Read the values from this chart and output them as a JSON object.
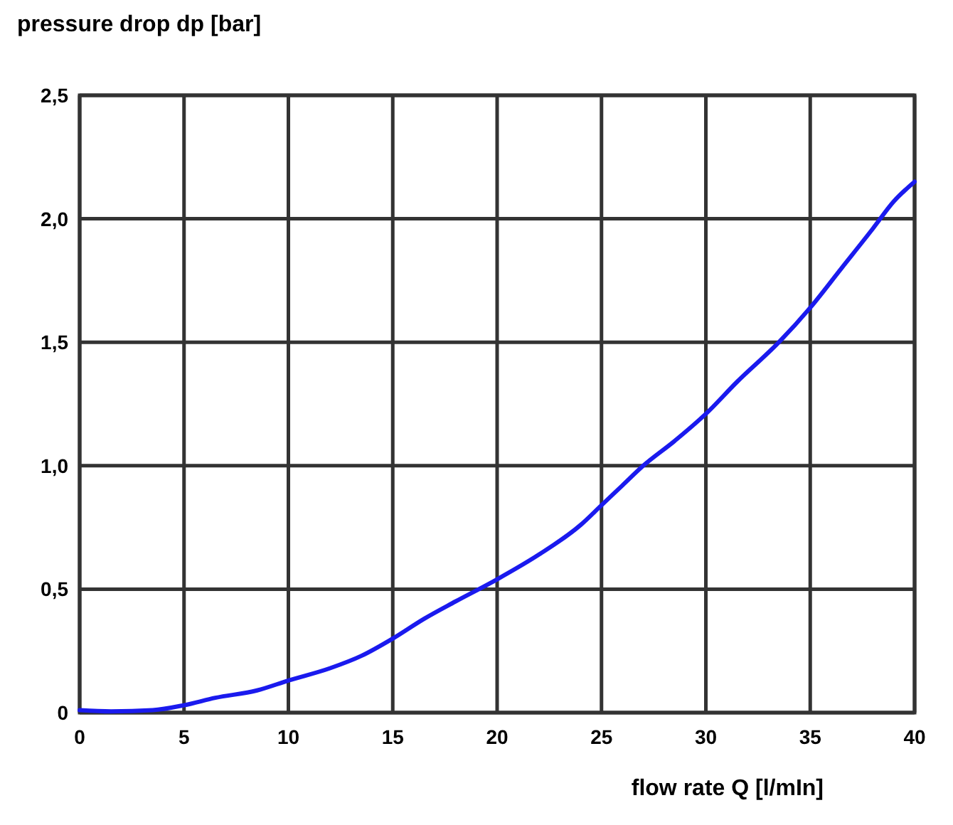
{
  "chart_data": {
    "type": "line",
    "ylabel": "pressure drop dp [bar]",
    "xlabel": "flow rate Q [l/mIn]",
    "xlim": [
      0,
      40
    ],
    "xticks": [
      0,
      5,
      10,
      15,
      20,
      25,
      30,
      35,
      40
    ],
    "ylim": [
      0,
      2.5
    ],
    "yticks": [
      0,
      {
        "value": 0.5,
        "label": "0,5"
      },
      {
        "value": 1,
        "label": "1,0"
      },
      {
        "value": 1.5,
        "label": "1,5"
      },
      {
        "value": 2,
        "label": "2,0"
      },
      {
        "value": 2.5,
        "label": "2,5"
      }
    ],
    "grid": true,
    "marker": "none",
    "line_style": "solid",
    "series": [
      {
        "color": "#1a1aee",
        "x": [
          0,
          1.5,
          3.5,
          5,
          6.5,
          8.5,
          10,
          12,
          13.5,
          15,
          16.5,
          18,
          20,
          22,
          24,
          25,
          26,
          27,
          28.5,
          30,
          31.5,
          33.5,
          35,
          36.5,
          38,
          39,
          40
        ],
        "values": [
          0.01,
          0.005,
          0.01,
          0.03,
          0.06,
          0.09,
          0.13,
          0.18,
          0.23,
          0.3,
          0.38,
          0.45,
          0.54,
          0.64,
          0.76,
          0.84,
          0.92,
          1.0,
          1.1,
          1.21,
          1.34,
          1.5,
          1.64,
          1.8,
          1.96,
          2.07,
          2.15
        ]
      }
    ]
  }
}
